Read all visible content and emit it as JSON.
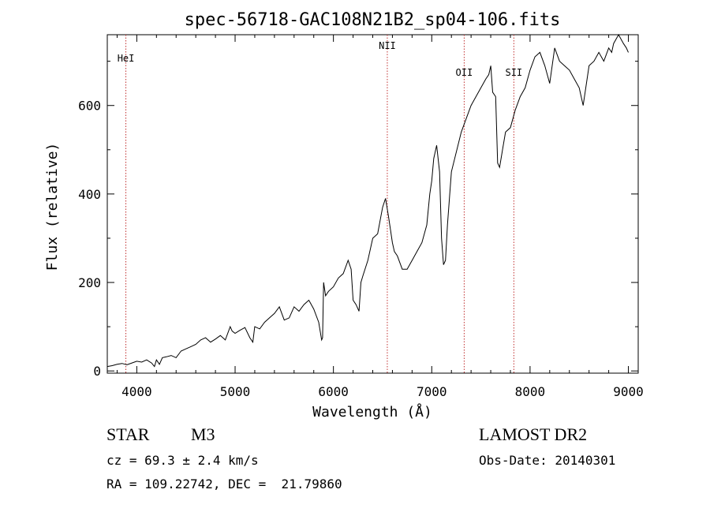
{
  "chart_data": {
    "type": "line",
    "title": "spec-56718-GAC108N21B2_sp04-106.fits",
    "xlabel": "Wavelength (Å)",
    "ylabel": "Flux (relative)",
    "xlim": [
      3700,
      9100
    ],
    "ylim": [
      -5,
      760
    ],
    "xticks": [
      4000,
      5000,
      6000,
      7000,
      8000,
      9000
    ],
    "yticks": [
      0,
      200,
      400,
      600
    ],
    "series": [
      {
        "x": [
          3700,
          3750,
          3800,
          3850,
          3900,
          3950,
          4000,
          4050,
          4100,
          4150,
          4180,
          4200,
          4230,
          4260,
          4300,
          4350,
          4400,
          4450,
          4500,
          4550,
          4600,
          4650,
          4700,
          4750,
          4800,
          4850,
          4900,
          4950,
          4970,
          5000,
          5050,
          5100,
          5150,
          5180,
          5200,
          5250,
          5300,
          5350,
          5400,
          5450,
          5500,
          5550,
          5600,
          5650,
          5700,
          5750,
          5800,
          5850,
          5880,
          5890,
          5900,
          5920,
          5950,
          6000,
          6050,
          6100,
          6150,
          6180,
          6200,
          6230,
          6260,
          6280,
          6300,
          6350,
          6400,
          6450,
          6500,
          6530,
          6560,
          6580,
          6600,
          6620,
          6650,
          6700,
          6750,
          6800,
          6850,
          6900,
          6950,
          6980,
          7000,
          7020,
          7050,
          7080,
          7100,
          7120,
          7140,
          7160,
          7200,
          7300,
          7400,
          7500,
          7550,
          7580,
          7600,
          7620,
          7650,
          7670,
          7690,
          7720,
          7750,
          7800,
          7850,
          7900,
          7950,
          8000,
          8050,
          8100,
          8150,
          8200,
          8250,
          8300,
          8350,
          8400,
          8450,
          8500,
          8540,
          8560,
          8600,
          8650,
          8700,
          8750,
          8800,
          8830,
          8850,
          8900,
          8950,
          8980,
          9000
        ],
        "y": [
          10,
          12,
          15,
          17,
          14,
          18,
          22,
          20,
          25,
          18,
          10,
          25,
          15,
          30,
          32,
          35,
          30,
          45,
          50,
          55,
          60,
          70,
          75,
          65,
          72,
          80,
          70,
          100,
          90,
          85,
          92,
          98,
          75,
          65,
          100,
          95,
          110,
          120,
          130,
          145,
          115,
          120,
          145,
          135,
          150,
          160,
          140,
          110,
          70,
          75,
          200,
          170,
          180,
          190,
          210,
          220,
          250,
          230,
          160,
          150,
          135,
          200,
          215,
          250,
          300,
          310,
          370,
          390,
          350,
          320,
          290,
          270,
          260,
          230,
          230,
          250,
          270,
          290,
          330,
          400,
          430,
          480,
          510,
          450,
          300,
          240,
          250,
          330,
          450,
          540,
          600,
          640,
          660,
          670,
          690,
          630,
          620,
          470,
          460,
          500,
          540,
          550,
          590,
          620,
          640,
          680,
          710,
          720,
          690,
          650,
          730,
          700,
          690,
          680,
          660,
          640,
          600,
          630,
          690,
          700,
          720,
          700,
          730,
          720,
          740,
          760,
          740,
          730,
          720
        ]
      }
    ],
    "annotations": [
      {
        "label": "HeI",
        "x": 3889
      },
      {
        "label": "NII",
        "x": 6548
      },
      {
        "label": "OII",
        "x": 7330
      },
      {
        "label": "SII",
        "x": 7835
      }
    ]
  },
  "info": {
    "object_class": "STAR",
    "subclass": "M3",
    "survey": "LAMOST DR2",
    "redshift": "cz = 69.3 ± 2.4 km/s",
    "obs_date": "Obs-Date: 20140301",
    "coords": "RA = 109.22742, DEC =  21.79860"
  }
}
